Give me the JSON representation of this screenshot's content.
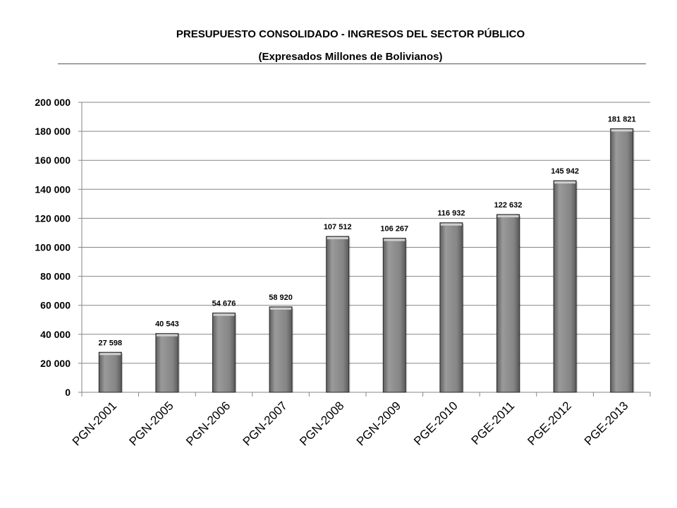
{
  "chart_data": {
    "type": "bar",
    "title": "PRESUPUESTO CONSOLIDADO - INGRESOS DEL SECTOR PÚBLICO",
    "subtitle": "(Expresados  Millones de Bolivianos)",
    "categories": [
      "PGN-2001",
      "PGN-2005",
      "PGN-2006",
      "PGN-2007",
      "PGN-2008",
      "PGN-2009",
      "PGE-2010",
      "PGE-2011",
      "PGE-2012",
      "PGE-2013"
    ],
    "values": [
      27598,
      40543,
      54676,
      58920,
      107512,
      106267,
      116932,
      122632,
      145942,
      181821
    ],
    "data_labels": [
      "27 598",
      "40 543",
      "54 676",
      "58 920",
      "107 512",
      "106 267",
      "116 932",
      "122 632",
      "145 942",
      "181 821"
    ],
    "y_ticks": [
      0,
      20000,
      40000,
      60000,
      80000,
      100000,
      120000,
      140000,
      160000,
      180000,
      200000
    ],
    "y_tick_labels": [
      "0",
      "20 000",
      "40 000",
      "60 000",
      "80 000",
      "100 000",
      "120 000",
      "140 000",
      "160 000",
      "180 000",
      "200 000"
    ],
    "ylim": [
      0,
      200000
    ],
    "grid": true,
    "legend": "none",
    "colors": {
      "bar": "#8a8a8a",
      "bar_edge": "#2a2a2a",
      "grid": "#868686"
    }
  }
}
